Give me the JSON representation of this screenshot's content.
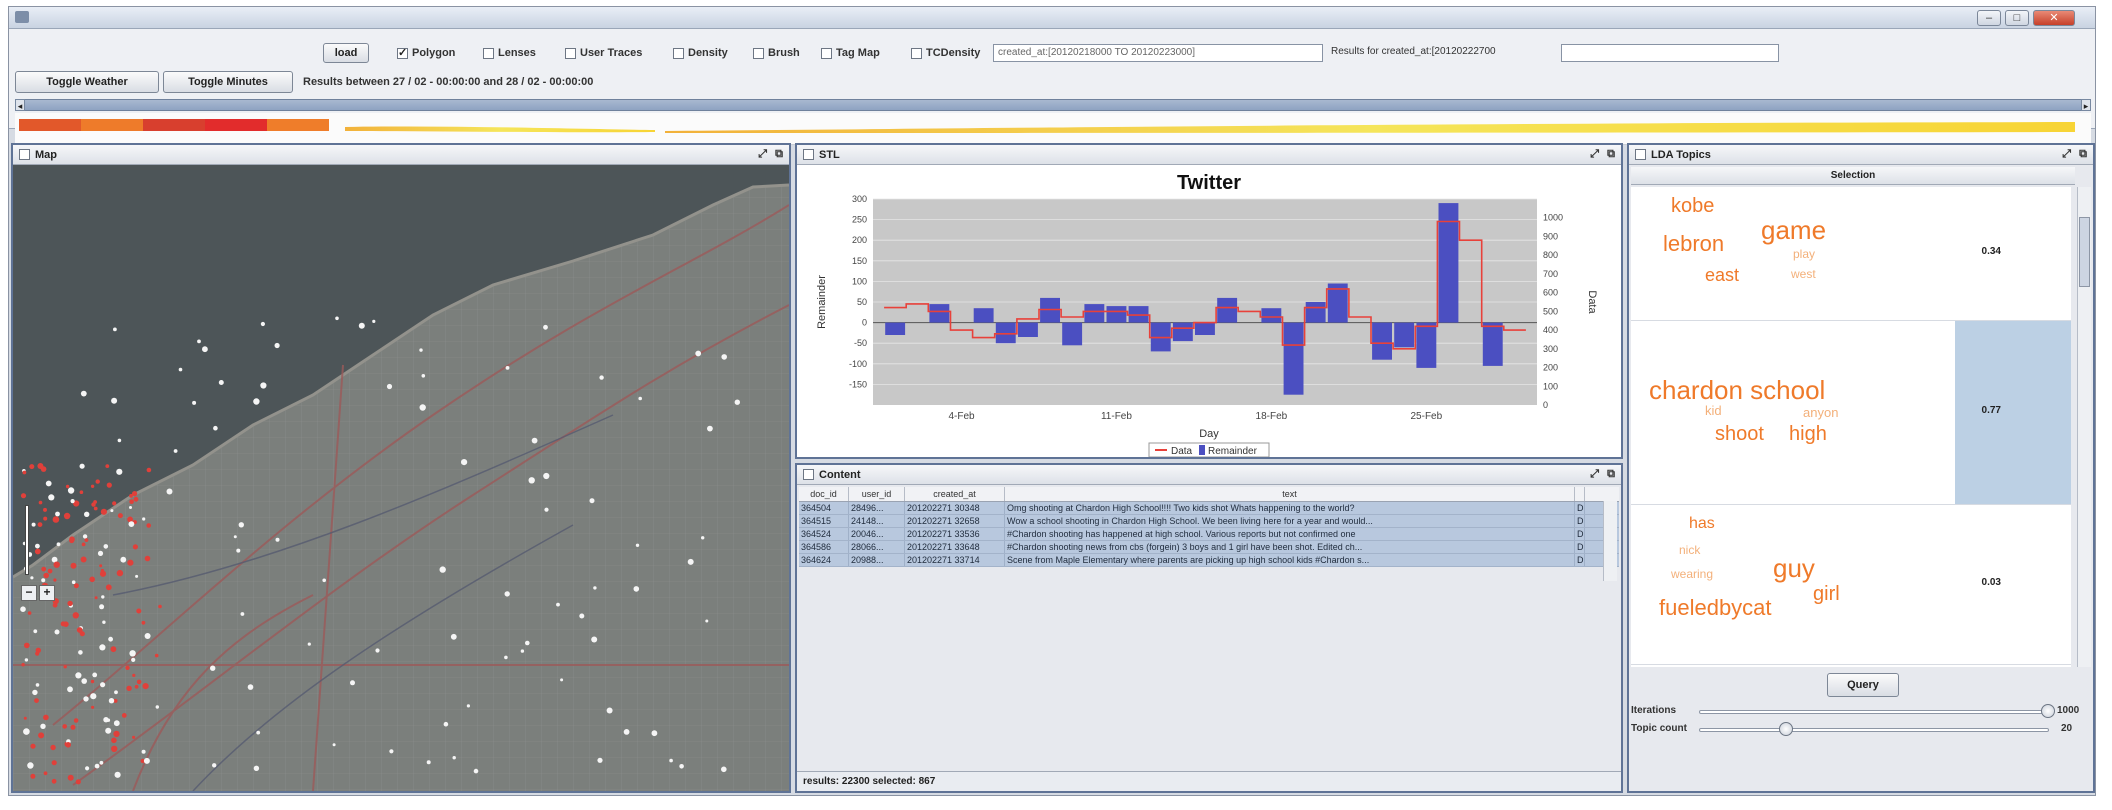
{
  "toolbar": {
    "load_label": "load",
    "checks": [
      {
        "label": "Polygon",
        "checked": true
      },
      {
        "label": "Lenses",
        "checked": false
      },
      {
        "label": "User Traces",
        "checked": false
      },
      {
        "label": "Density",
        "checked": false
      },
      {
        "label": "Brush",
        "checked": false
      },
      {
        "label": "Tag Map",
        "checked": false
      },
      {
        "label": "TCDensity",
        "checked": false
      }
    ],
    "query_value": "created_at:[20120218000 TO 20120223000]",
    "results_for_label": "Results for created_at:[20120222700",
    "results_value": "",
    "toggle_weather_label": "Toggle Weather",
    "toggle_minutes_label": "Toggle Minutes",
    "results_range_text": "Results between 27 / 02 - 00:00:00 and 28 / 02 - 00:00:00"
  },
  "timeline": {
    "segments": [
      {
        "color": "#e2582a",
        "width": 62
      },
      {
        "color": "#ee7b2a",
        "width": 62
      },
      {
        "color": "#d83f2e",
        "width": 62
      },
      {
        "color": "#e22c2c",
        "width": 62
      },
      {
        "color": "#ef7d2a",
        "width": 62
      }
    ]
  },
  "map": {
    "title": "Map",
    "zoom_minus": "−",
    "zoom_plus": "+"
  },
  "stl": {
    "title": "STL",
    "chart_title": "Twitter",
    "x_label": "Day",
    "y_label_left": "Remainder",
    "y_label_right": "Data",
    "legend_data": "Data",
    "legend_remainder": "Remainder"
  },
  "chart_data": {
    "type": "bar",
    "title": "Twitter",
    "xlabel": "Day",
    "ylabel": "Remainder",
    "ylabel_right": "Data",
    "ylim": [
      -200,
      300
    ],
    "ylim_right": [
      0,
      1100
    ],
    "left_ticks": [
      300,
      250,
      200,
      150,
      100,
      50,
      0,
      -50,
      -100,
      -150
    ],
    "right_ticks": [
      0,
      100,
      200,
      300,
      400,
      500,
      600,
      700,
      800,
      900,
      1000
    ],
    "x_ticks": [
      "4-Feb",
      "11-Feb",
      "18-Feb",
      "25-Feb"
    ],
    "x_tick_days": [
      4,
      11,
      18,
      25
    ],
    "days": [
      1,
      2,
      3,
      4,
      5,
      6,
      7,
      8,
      9,
      10,
      11,
      12,
      13,
      14,
      15,
      16,
      17,
      18,
      19,
      20,
      21,
      22,
      23,
      24,
      25,
      26,
      27,
      28,
      29
    ],
    "series": [
      {
        "name": "Remainder",
        "values": [
          -30,
          0,
          45,
          0,
          35,
          -50,
          -35,
          60,
          -55,
          45,
          40,
          40,
          -70,
          -45,
          -30,
          60,
          0,
          35,
          -175,
          50,
          95,
          0,
          -90,
          -60,
          -110,
          290,
          0,
          -105,
          0
        ]
      },
      {
        "name": "Data",
        "values": [
          520,
          540,
          500,
          400,
          360,
          380,
          460,
          510,
          470,
          500,
          500,
          480,
          360,
          410,
          440,
          520,
          500,
          470,
          320,
          520,
          620,
          470,
          330,
          300,
          420,
          980,
          880,
          420,
          400
        ]
      }
    ],
    "legend": "bottom-center"
  },
  "content": {
    "title": "Content",
    "columns": [
      "doc_id",
      "user_id",
      "created_at",
      "text",
      ""
    ],
    "rows": [
      [
        "364504",
        "28496...",
        "201202271 30348",
        "Omg shooting at Chardon High School!!!! Two kids shot Whats happening to the world?",
        "D"
      ],
      [
        "364515",
        "24148...",
        "201202271 32658",
        "Wow a school shooting in Chardon High School. We been living here for a year and would...",
        "D"
      ],
      [
        "364524",
        "20046...",
        "201202271 33536",
        "#Chardon shooting has happened at high school. Various reports but not confirmed one",
        "D"
      ],
      [
        "364586",
        "28066...",
        "201202271 33648",
        "#Chardon shooting news from cbs (forgein) 3 boys and 1 girl have been shot. Edited ch...",
        "D"
      ],
      [
        "364624",
        "20988...",
        "201202271 33714",
        "Scene from Maple Elementary where parents are picking up high school kids #Chardon s...",
        "D"
      ]
    ],
    "status": "results: 22300 selected: 867"
  },
  "lda": {
    "title": "LDA Topics",
    "column_header": "Selection",
    "topics": [
      {
        "score": "0.34",
        "selected": false,
        "words": [
          {
            "text": "kobe",
            "size": 20,
            "light": false
          },
          {
            "text": "game",
            "size": 26,
            "light": false
          },
          {
            "text": "lebron",
            "size": 22,
            "light": false
          },
          {
            "text": "play",
            "size": 12,
            "light": true
          },
          {
            "text": "east",
            "size": 18,
            "light": false
          },
          {
            "text": "west",
            "size": 12,
            "light": true
          }
        ]
      },
      {
        "score": "0.77",
        "selected": true,
        "words": [
          {
            "text": "chardon school",
            "size": 26,
            "light": false
          },
          {
            "text": "kid",
            "size": 13,
            "light": true
          },
          {
            "text": "shoot",
            "size": 20,
            "light": false
          },
          {
            "text": "high",
            "size": 20,
            "light": false
          },
          {
            "text": "anyon",
            "size": 13,
            "light": true
          }
        ]
      },
      {
        "score": "0.03",
        "selected": false,
        "words": [
          {
            "text": "has",
            "size": 16,
            "light": false
          },
          {
            "text": "nick",
            "size": 12,
            "light": true
          },
          {
            "text": "guy",
            "size": 26,
            "light": false
          },
          {
            "text": "wearing",
            "size": 12,
            "light": true
          },
          {
            "text": "girl",
            "size": 20,
            "light": false
          },
          {
            "text": "fueledbycat",
            "size": 22,
            "light": false
          }
        ]
      }
    ],
    "query_label": "Query",
    "iterations_label": "Iterations",
    "iterations_value": "1000",
    "topic_count_label": "Topic count",
    "topic_count_value": "20"
  }
}
